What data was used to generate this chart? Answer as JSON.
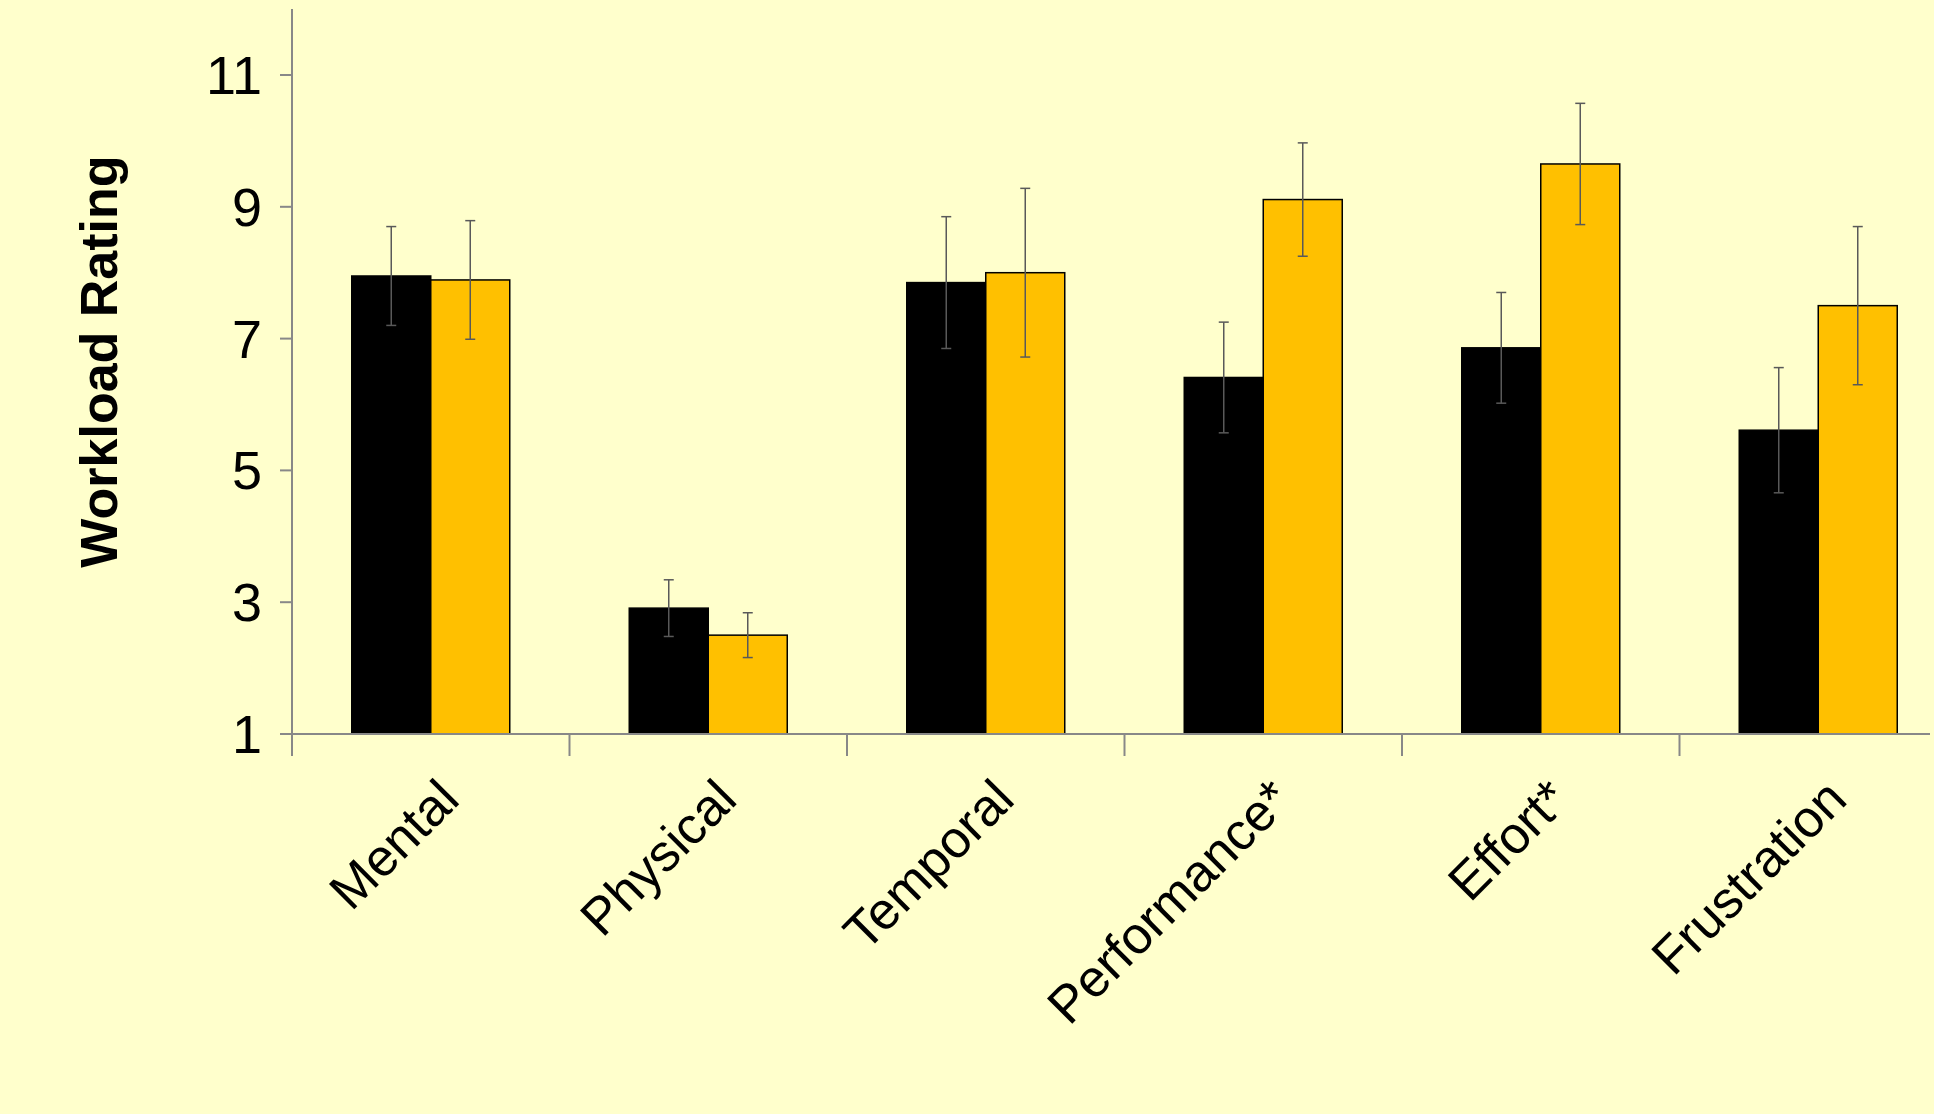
{
  "chart_data": {
    "type": "bar",
    "ylabel": "Workload Rating",
    "categories": [
      "Mental",
      "Physical",
      "Temporal",
      "Performance*",
      "Effort*",
      "Frustration"
    ],
    "series": [
      {
        "color": "#000000",
        "values": [
          7.95,
          2.91,
          7.85,
          6.41,
          6.86,
          5.61
        ],
        "errors": [
          0.75,
          0.43,
          1.0,
          0.84,
          0.84,
          0.95
        ]
      },
      {
        "color": "#ffc000",
        "values": [
          7.89,
          2.5,
          8.0,
          9.11,
          9.65,
          7.5
        ],
        "errors": [
          0.9,
          0.34,
          1.28,
          0.86,
          0.92,
          1.2
        ]
      }
    ],
    "ylim": [
      1,
      12
    ],
    "yticks": [
      1,
      3,
      5,
      7,
      9,
      11
    ],
    "grid": false
  }
}
